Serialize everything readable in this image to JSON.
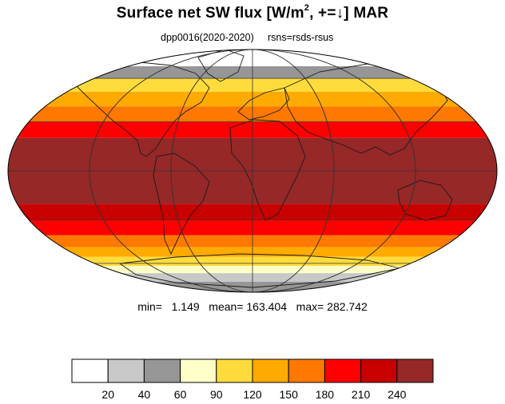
{
  "title": {
    "prefix": "Surface net SW flux [W/m",
    "sup": "2",
    "suffix": ", +=↓]  MAR"
  },
  "subtitle": {
    "experiment": "dpp0016(2020-2020)",
    "variable": "rsns=rsds-rsus"
  },
  "stats": {
    "text": "min=   1.149   mean= 163.404   max= 282.742",
    "min": 1.149,
    "mean": 163.404,
    "max": 282.742
  },
  "colorbar": {
    "colors": [
      "#ffffff",
      "#c8c8c8",
      "#969696",
      "#ffffc8",
      "#ffdc3c",
      "#ffaa00",
      "#ff7800",
      "#ff0000",
      "#c80000",
      "#962828"
    ],
    "ticks": [
      "20",
      "40",
      "60",
      "90",
      "120",
      "150",
      "180",
      "210",
      "240"
    ]
  },
  "map": {
    "projection": "mollweide",
    "lat_bands": [
      {
        "lat": [
          70,
          90
        ],
        "color": "#ffffff"
      },
      {
        "lat": [
          60,
          70
        ],
        "color": "#969696"
      },
      {
        "lat": [
          50,
          60
        ],
        "color": "#ffdc3c"
      },
      {
        "lat": [
          40,
          50
        ],
        "color": "#ffaa00"
      },
      {
        "lat": [
          30,
          40
        ],
        "color": "#ff7800"
      },
      {
        "lat": [
          20,
          30
        ],
        "color": "#ff0000"
      },
      {
        "lat": [
          -20,
          20
        ],
        "color": "#962828"
      },
      {
        "lat": [
          -30,
          -20
        ],
        "color": "#c80000"
      },
      {
        "lat": [
          -40,
          -30
        ],
        "color": "#ff0000"
      },
      {
        "lat": [
          -48,
          -40
        ],
        "color": "#ff7800"
      },
      {
        "lat": [
          -55,
          -48
        ],
        "color": "#ffaa00"
      },
      {
        "lat": [
          -62,
          -55
        ],
        "color": "#ffdc3c"
      },
      {
        "lat": [
          -68,
          -62
        ],
        "color": "#ffffc8"
      },
      {
        "lat": [
          -76,
          -68
        ],
        "color": "#c8c8c8"
      },
      {
        "lat": [
          -90,
          -76
        ],
        "color": "#969696"
      }
    ]
  }
}
